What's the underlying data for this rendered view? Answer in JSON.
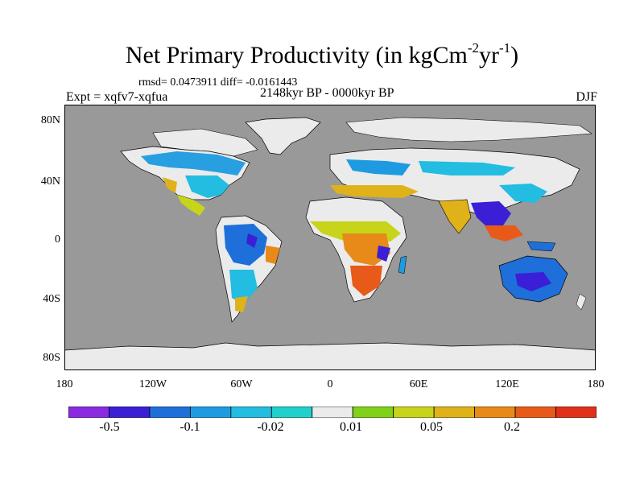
{
  "title": {
    "main": "Net Primary Productivity (in kgCm",
    "sup1": "-2",
    "mid": "yr",
    "sup2": "-1",
    "end": ")"
  },
  "subtitle_stats": "rmsd= 0.0473911 diff= -0.0161443",
  "experiment": "Expt = xqfv7-xqfua",
  "period": "2148kyr BP - 0000kyr BP",
  "season": "DJF",
  "map": {
    "projection": "cylindrical equidistant",
    "lon_range": [
      -180,
      180
    ],
    "lat_range": [
      -90,
      90
    ],
    "ocean_color": "#999999",
    "ice_land_color": "#ebebeb",
    "y_ticks": [
      "80N",
      "40N",
      "0",
      "40S",
      "80S"
    ],
    "x_ticks": [
      "180",
      "120W",
      "60W",
      "0",
      "60E",
      "120E",
      "180"
    ]
  },
  "colorbar": {
    "colors": [
      "#8a2be2",
      "#3a1fd6",
      "#1e6fd9",
      "#1e9be0",
      "#22bde0",
      "#1fd0cc",
      "#ebebeb",
      "#7fd11a",
      "#c8d41a",
      "#e0b21a",
      "#e88a1a",
      "#e85a1a",
      "#e0301a"
    ],
    "labels": [
      "-0.5",
      "-0.1",
      "-0.02",
      "0.01",
      "0.05",
      "0.2"
    ]
  }
}
